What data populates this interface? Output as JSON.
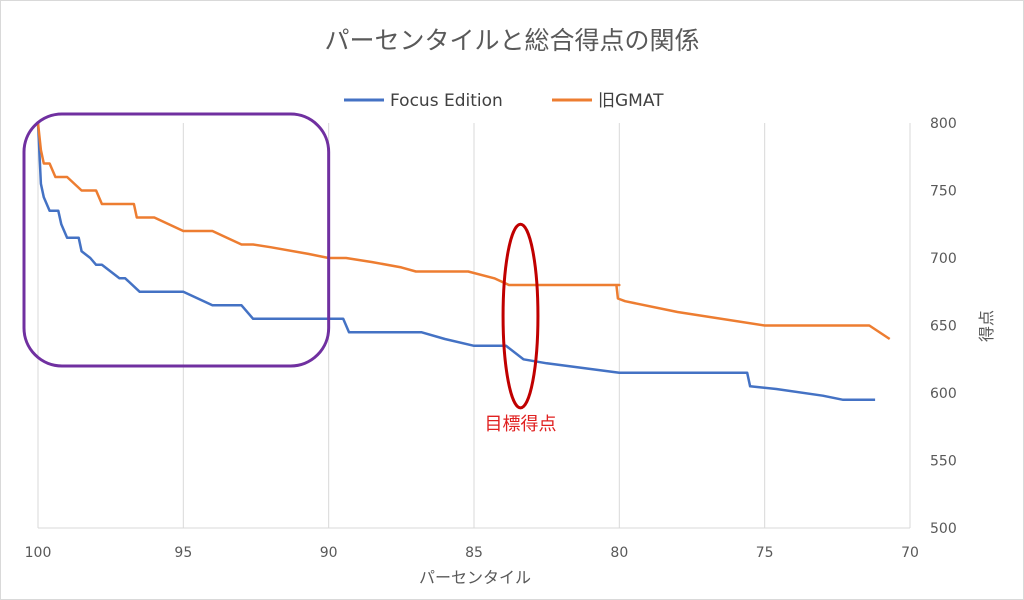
{
  "chart_data": {
    "type": "line",
    "title": "パーセンタイルと総合得点の関係",
    "xlabel": "パーセンタイル",
    "ylabel": "得点",
    "x_reversed": true,
    "xlim": [
      100,
      70
    ],
    "ylim": [
      500,
      800
    ],
    "x_ticks": [
      "100",
      "95",
      "90",
      "85",
      "80",
      "75",
      "70"
    ],
    "y_ticks": [
      "800",
      "750",
      "700",
      "650",
      "600",
      "550",
      "500"
    ],
    "y_axis_side": "right",
    "grid": "vertical",
    "legend_position": "top",
    "series": [
      {
        "name": "Focus Edition",
        "color": "#4472c4",
        "points": [
          [
            100,
            800
          ],
          [
            99.9,
            755
          ],
          [
            99.8,
            745
          ],
          [
            99.7,
            740
          ],
          [
            99.6,
            735
          ],
          [
            99.3,
            735
          ],
          [
            99.2,
            725
          ],
          [
            99,
            715
          ],
          [
            98.8,
            715
          ],
          [
            98.6,
            715
          ],
          [
            98.5,
            705
          ],
          [
            98.2,
            700
          ],
          [
            98,
            695
          ],
          [
            97.8,
            695
          ],
          [
            97.2,
            685
          ],
          [
            97,
            685
          ],
          [
            96.5,
            675
          ],
          [
            95.5,
            675
          ],
          [
            95,
            675
          ],
          [
            94,
            665
          ],
          [
            93.5,
            665
          ],
          [
            93,
            665
          ],
          [
            92.6,
            655
          ],
          [
            92,
            655
          ],
          [
            91,
            655
          ],
          [
            90,
            655
          ],
          [
            89.5,
            655
          ],
          [
            89.3,
            645
          ],
          [
            88.5,
            645
          ],
          [
            87.5,
            645
          ],
          [
            86.8,
            645
          ],
          [
            86,
            640
          ],
          [
            85,
            635
          ],
          [
            84.3,
            635
          ],
          [
            83.9,
            635
          ],
          [
            83.3,
            625
          ],
          [
            82.5,
            622
          ],
          [
            80,
            615
          ],
          [
            79,
            615
          ],
          [
            77.5,
            615
          ],
          [
            75.6,
            615
          ],
          [
            75.5,
            605
          ],
          [
            74.6,
            603
          ],
          [
            73,
            598
          ],
          [
            72.3,
            595
          ],
          [
            71.2,
            595
          ]
        ]
      },
      {
        "name": "旧GMAT",
        "color": "#ed7d31",
        "points": [
          [
            100,
            800
          ],
          [
            99.9,
            780
          ],
          [
            99.8,
            770
          ],
          [
            99.7,
            770
          ],
          [
            99.6,
            770
          ],
          [
            99.5,
            765
          ],
          [
            99.4,
            760
          ],
          [
            99,
            760
          ],
          [
            98.5,
            750
          ],
          [
            98,
            750
          ],
          [
            97.8,
            740
          ],
          [
            97.5,
            740
          ],
          [
            96.7,
            740
          ],
          [
            96.6,
            730
          ],
          [
            96,
            730
          ],
          [
            95.5,
            725
          ],
          [
            95,
            720
          ],
          [
            94,
            720
          ],
          [
            93.5,
            715
          ],
          [
            93,
            710
          ],
          [
            92.6,
            710
          ],
          [
            92,
            708
          ],
          [
            90.7,
            703
          ],
          [
            90,
            700
          ],
          [
            89.4,
            700
          ],
          [
            88.5,
            697
          ],
          [
            87.5,
            693
          ],
          [
            87,
            690
          ],
          [
            86.3,
            690
          ],
          [
            85.9,
            690
          ],
          [
            85.2,
            690
          ],
          [
            84.3,
            685
          ],
          [
            83.8,
            680
          ],
          [
            83,
            680
          ],
          [
            82,
            680
          ],
          [
            80,
            680
          ],
          [
            80.1,
            680
          ],
          [
            80.05,
            670
          ],
          [
            79.8,
            668
          ],
          [
            78,
            660
          ],
          [
            75,
            650
          ],
          [
            72.8,
            650
          ],
          [
            71.4,
            650
          ],
          [
            70.7,
            640
          ]
        ]
      }
    ],
    "annotations": [
      {
        "type": "rounded-rect",
        "color": "#7030a0",
        "x_range": [
          100,
          90
        ],
        "y_range": [
          620,
          800
        ]
      },
      {
        "type": "ellipse",
        "color": "#c00000",
        "center": [
          83.4,
          657
        ],
        "radius_x": 0.6,
        "radius_y": 68
      },
      {
        "type": "label",
        "text": "目標得点",
        "color": "#e02020",
        "at": [
          83.4,
          577
        ]
      }
    ]
  }
}
